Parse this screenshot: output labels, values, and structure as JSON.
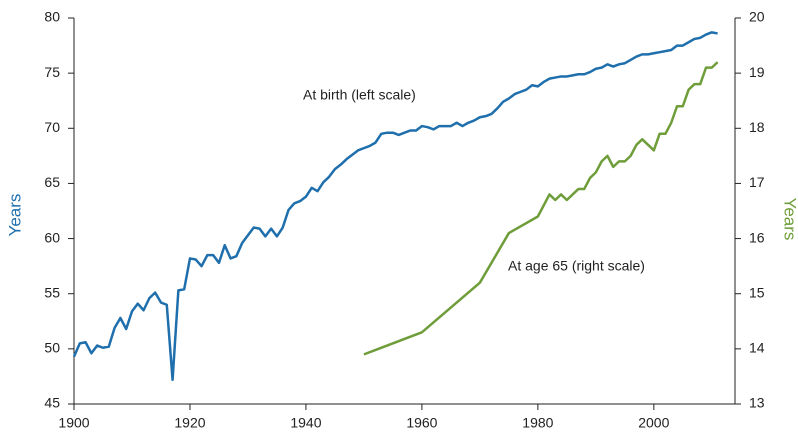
{
  "chart_data": {
    "type": "line",
    "annotations": [
      "At birth (left scale)",
      "At age 65 (right scale)"
    ],
    "ylabel": "Years",
    "y2label": "Years",
    "xlim": [
      1900,
      2014
    ],
    "xticks": [
      1900,
      1920,
      1940,
      1960,
      1980,
      2000
    ],
    "ylim": [
      45,
      80
    ],
    "yticks": [
      45,
      50,
      55,
      60,
      65,
      70,
      75,
      80
    ],
    "y2lim": [
      13,
      20
    ],
    "y2ticks": [
      13,
      14,
      15,
      16,
      17,
      18,
      19,
      20
    ],
    "series": [
      {
        "name": "At birth",
        "color": "#1f6fad",
        "axis": "y",
        "x": [
          1900,
          1901,
          1902,
          1903,
          1904,
          1905,
          1906,
          1907,
          1908,
          1909,
          1910,
          1911,
          1912,
          1913,
          1914,
          1915,
          1916,
          1917,
          1918,
          1919,
          1920,
          1921,
          1922,
          1923,
          1924,
          1925,
          1926,
          1927,
          1928,
          1929,
          1930,
          1931,
          1932,
          1933,
          1934,
          1935,
          1936,
          1937,
          1938,
          1939,
          1940,
          1941,
          1942,
          1943,
          1944,
          1945,
          1946,
          1947,
          1948,
          1949,
          1950,
          1951,
          1952,
          1953,
          1954,
          1955,
          1956,
          1957,
          1958,
          1959,
          1960,
          1961,
          1962,
          1963,
          1964,
          1965,
          1966,
          1967,
          1968,
          1969,
          1970,
          1971,
          1972,
          1973,
          1974,
          1975,
          1976,
          1977,
          1978,
          1979,
          1980,
          1981,
          1982,
          1983,
          1984,
          1985,
          1986,
          1987,
          1988,
          1989,
          1990,
          1991,
          1992,
          1993,
          1994,
          1995,
          1996,
          1997,
          1998,
          1999,
          2000,
          2001,
          2002,
          2003,
          2004,
          2005,
          2006,
          2007,
          2008,
          2009,
          2010,
          2011
        ],
        "values": [
          49.3,
          50.5,
          50.6,
          49.6,
          50.3,
          50.1,
          50.2,
          51.9,
          52.8,
          51.8,
          53.4,
          54.1,
          53.5,
          54.6,
          55.1,
          54.2,
          54.0,
          47.2,
          55.3,
          55.4,
          58.2,
          58.1,
          57.5,
          58.5,
          58.5,
          57.8,
          59.4,
          58.2,
          58.4,
          59.6,
          60.3,
          61.0,
          60.9,
          60.2,
          60.9,
          60.2,
          61.0,
          62.6,
          63.2,
          63.4,
          63.8,
          64.6,
          64.3,
          65.1,
          65.6,
          66.3,
          66.7,
          67.2,
          67.6,
          68.0,
          68.2,
          68.4,
          68.7,
          69.5,
          69.6,
          69.6,
          69.4,
          69.6,
          69.8,
          69.8,
          70.2,
          70.1,
          69.9,
          70.2,
          70.2,
          70.2,
          70.5,
          70.2,
          70.5,
          70.7,
          71.0,
          71.1,
          71.3,
          71.8,
          72.4,
          72.7,
          73.1,
          73.3,
          73.5,
          73.9,
          73.8,
          74.2,
          74.5,
          74.6,
          74.7,
          74.7,
          74.8,
          74.9,
          74.9,
          75.1,
          75.4,
          75.5,
          75.8,
          75.6,
          75.8,
          75.9,
          76.2,
          76.5,
          76.7,
          76.7,
          76.8,
          76.9,
          77.0,
          77.1,
          77.5,
          77.5,
          77.8,
          78.1,
          78.2,
          78.5,
          78.7,
          78.6
        ]
      },
      {
        "name": "At age 65",
        "color": "#6e9d3a",
        "axis": "y2",
        "x": [
          1950,
          1960,
          1970,
          1975,
          1980,
          1981,
          1982,
          1983,
          1984,
          1985,
          1986,
          1987,
          1988,
          1989,
          1990,
          1991,
          1992,
          1993,
          1994,
          1995,
          1996,
          1997,
          1998,
          1999,
          2000,
          2001,
          2002,
          2003,
          2004,
          2005,
          2006,
          2007,
          2008,
          2009,
          2010,
          2011
        ],
        "values": [
          13.9,
          14.3,
          15.2,
          16.1,
          16.4,
          16.6,
          16.8,
          16.7,
          16.8,
          16.7,
          16.8,
          16.9,
          16.9,
          17.1,
          17.2,
          17.4,
          17.5,
          17.3,
          17.4,
          17.4,
          17.5,
          17.7,
          17.8,
          17.7,
          17.6,
          17.9,
          17.9,
          18.1,
          18.4,
          18.4,
          18.7,
          18.8,
          18.8,
          19.1,
          19.1,
          19.2
        ]
      }
    ]
  }
}
